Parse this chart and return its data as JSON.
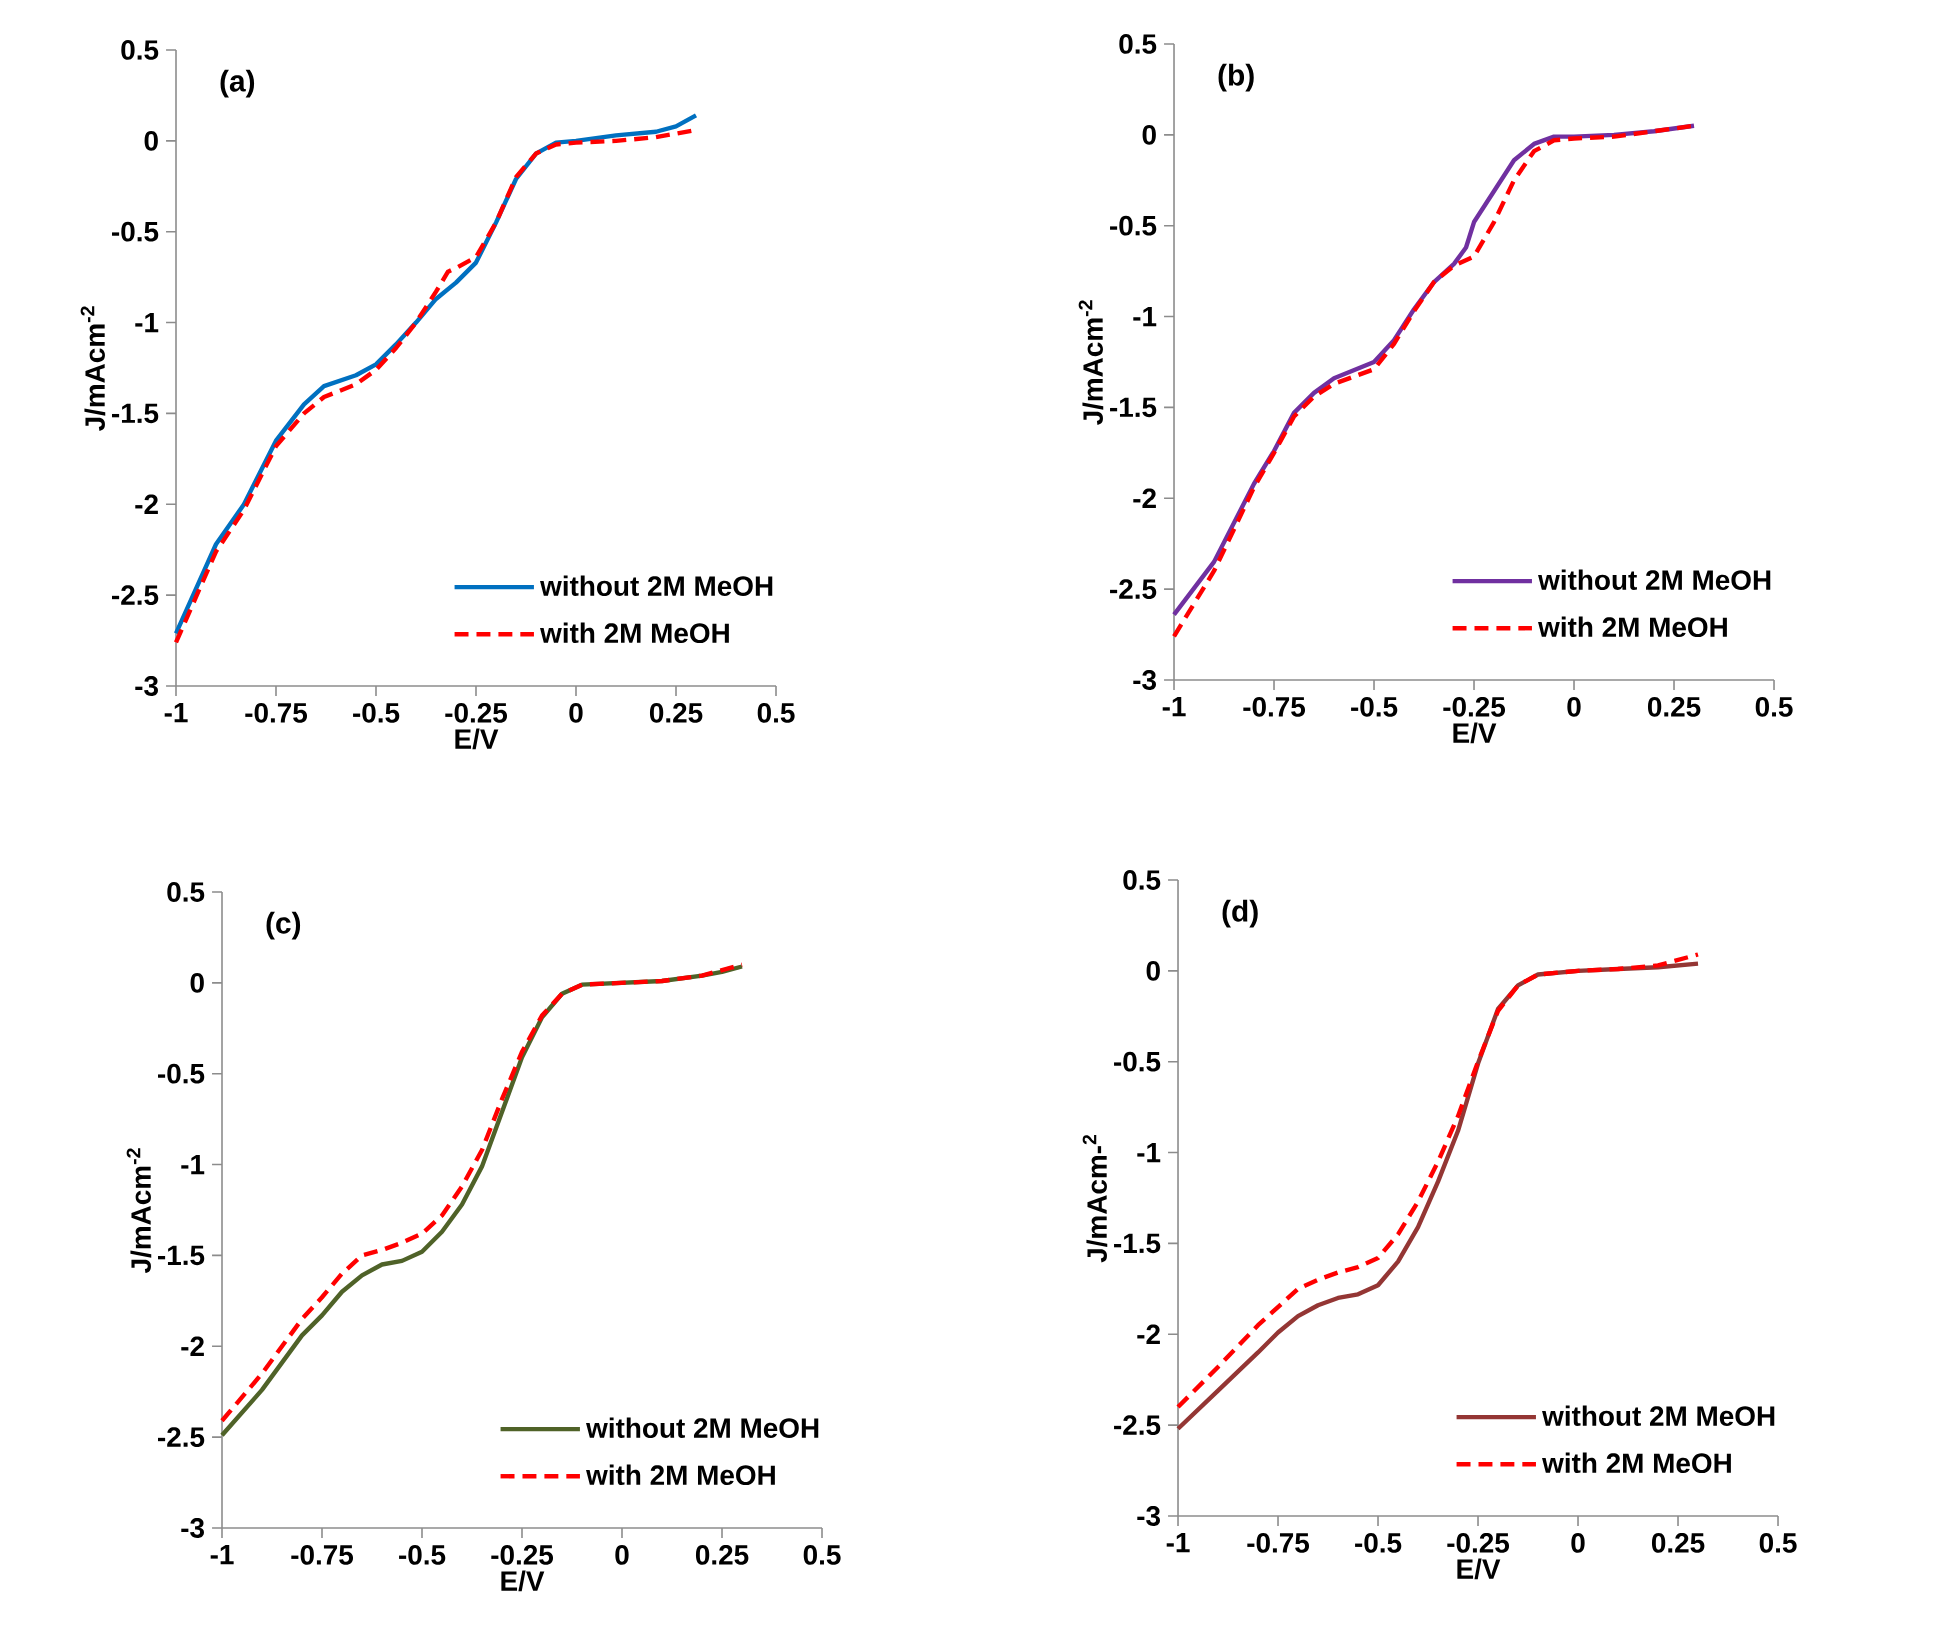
{
  "chart_data": [
    {
      "type": "line",
      "annotations": [
        "(a)"
      ],
      "xlabel": "E/V",
      "ylabel": "J/mAcm$^{-2}$",
      "xlim": [
        -1,
        0.5
      ],
      "ylim": [
        -3,
        0.5
      ],
      "xticks": [
        -1,
        -0.75,
        -0.5,
        -0.25,
        0,
        0.25,
        0.5
      ],
      "yticks": [
        -3,
        -2.5,
        -2,
        -1.5,
        -1,
        -0.5,
        0,
        0.5
      ],
      "legend": "bottom right",
      "series": [
        {
          "name": "without 2M MeOH",
          "color": "#0070c0",
          "line_style": "solid",
          "x": [
            -1,
            -0.9,
            -0.83,
            -0.75,
            -0.68,
            -0.63,
            -0.55,
            -0.5,
            -0.45,
            -0.4,
            -0.35,
            -0.3,
            -0.25,
            -0.2,
            -0.15,
            -0.1,
            -0.05,
            0,
            0.1,
            0.2,
            0.25,
            0.3
          ],
          "values": [
            -2.71,
            -2.22,
            -2.0,
            -1.65,
            -1.45,
            -1.35,
            -1.29,
            -1.23,
            -1.12,
            -1.0,
            -0.87,
            -0.78,
            -0.67,
            -0.45,
            -0.21,
            -0.07,
            -0.01,
            0.0,
            0.03,
            0.05,
            0.08,
            0.14
          ]
        },
        {
          "name": "with 2M MeOH",
          "color": "#ff0000",
          "line_style": "dashed",
          "x": [
            -1,
            -0.9,
            -0.83,
            -0.75,
            -0.68,
            -0.63,
            -0.55,
            -0.5,
            -0.45,
            -0.4,
            -0.35,
            -0.32,
            -0.3,
            -0.25,
            -0.2,
            -0.15,
            -0.1,
            -0.05,
            0,
            0.1,
            0.2,
            0.3
          ],
          "values": [
            -2.76,
            -2.26,
            -2.03,
            -1.68,
            -1.5,
            -1.41,
            -1.34,
            -1.26,
            -1.14,
            -1.0,
            -0.83,
            -0.72,
            -0.7,
            -0.64,
            -0.45,
            -0.2,
            -0.07,
            -0.02,
            -0.01,
            0.0,
            0.02,
            0.06
          ]
        }
      ]
    },
    {
      "type": "line",
      "annotations": [
        "(b)"
      ],
      "xlabel": "E/V",
      "ylabel": "J/mAcm$^{-2}$",
      "xlim": [
        -1,
        0.5
      ],
      "ylim": [
        -3,
        0.5
      ],
      "xticks": [
        -1,
        -0.75,
        -0.5,
        -0.25,
        0,
        0.25,
        0.5
      ],
      "yticks": [
        -3,
        -2.5,
        -2,
        -1.5,
        -1,
        -0.5,
        0,
        0.5
      ],
      "legend": "bottom right",
      "series": [
        {
          "name": "without 2M MeOH",
          "color": "#7030a0",
          "line_style": "solid",
          "x": [
            -1,
            -0.9,
            -0.8,
            -0.75,
            -0.7,
            -0.65,
            -0.6,
            -0.5,
            -0.45,
            -0.4,
            -0.35,
            -0.3,
            -0.27,
            -0.25,
            -0.2,
            -0.15,
            -0.1,
            -0.05,
            0,
            0.1,
            0.2,
            0.3
          ],
          "values": [
            -2.64,
            -2.35,
            -1.92,
            -1.74,
            -1.53,
            -1.42,
            -1.34,
            -1.25,
            -1.13,
            -0.96,
            -0.81,
            -0.71,
            -0.62,
            -0.48,
            -0.31,
            -0.14,
            -0.05,
            -0.01,
            -0.01,
            0.0,
            0.02,
            0.05
          ]
        },
        {
          "name": "with 2M MeOH",
          "color": "#ff0000",
          "line_style": "dashed",
          "x": [
            -1,
            -0.9,
            -0.8,
            -0.75,
            -0.7,
            -0.65,
            -0.6,
            -0.5,
            -0.45,
            -0.4,
            -0.35,
            -0.3,
            -0.25,
            -0.2,
            -0.15,
            -0.1,
            -0.05,
            0,
            0.1,
            0.2,
            0.3
          ],
          "values": [
            -2.76,
            -2.4,
            -1.94,
            -1.75,
            -1.55,
            -1.44,
            -1.37,
            -1.29,
            -1.15,
            -0.97,
            -0.81,
            -0.72,
            -0.67,
            -0.48,
            -0.25,
            -0.09,
            -0.03,
            -0.02,
            -0.01,
            0.02,
            0.05
          ]
        }
      ]
    },
    {
      "type": "line",
      "annotations": [
        "(c)"
      ],
      "xlabel": "E/V",
      "ylabel": "J/mAcm$^{-2}$",
      "xlim": [
        -1,
        0.5
      ],
      "ylim": [
        -3,
        0.5
      ],
      "xticks": [
        -1,
        -0.75,
        -0.5,
        -0.25,
        0,
        0.25,
        0.5
      ],
      "yticks": [
        -3,
        -2.5,
        -2,
        -1.5,
        -1,
        -0.5,
        0,
        0.5
      ],
      "legend": "bottom right",
      "series": [
        {
          "name": "without 2M MeOH",
          "color": "#4f6228",
          "line_style": "solid",
          "x": [
            -1,
            -0.9,
            -0.8,
            -0.75,
            -0.7,
            -0.65,
            -0.6,
            -0.55,
            -0.5,
            -0.45,
            -0.4,
            -0.35,
            -0.3,
            -0.25,
            -0.2,
            -0.15,
            -0.1,
            0,
            0.1,
            0.2,
            0.25,
            0.3
          ],
          "values": [
            -2.49,
            -2.24,
            -1.94,
            -1.83,
            -1.7,
            -1.61,
            -1.55,
            -1.53,
            -1.48,
            -1.37,
            -1.22,
            -1.01,
            -0.71,
            -0.41,
            -0.19,
            -0.06,
            -0.01,
            0.0,
            0.01,
            0.04,
            0.06,
            0.09
          ]
        },
        {
          "name": "with 2M MeOH",
          "color": "#ff0000",
          "line_style": "dashed",
          "x": [
            -1,
            -0.9,
            -0.8,
            -0.75,
            -0.7,
            -0.65,
            -0.6,
            -0.55,
            -0.5,
            -0.45,
            -0.4,
            -0.35,
            -0.3,
            -0.25,
            -0.2,
            -0.15,
            -0.1,
            0,
            0.1,
            0.2,
            0.3
          ],
          "values": [
            -2.41,
            -2.15,
            -1.85,
            -1.73,
            -1.6,
            -1.5,
            -1.47,
            -1.43,
            -1.38,
            -1.28,
            -1.12,
            -0.92,
            -0.64,
            -0.38,
            -0.18,
            -0.06,
            -0.01,
            0.0,
            0.01,
            0.04,
            0.1
          ]
        }
      ]
    },
    {
      "type": "line",
      "annotations": [
        "(d)"
      ],
      "xlabel": "E/V",
      "ylabel": "J/mAcm-$^{2}$",
      "xlim": [
        -1,
        0.5
      ],
      "ylim": [
        -3,
        0.5
      ],
      "xticks": [
        -1,
        -0.75,
        -0.5,
        -0.25,
        0,
        0.25,
        0.5
      ],
      "yticks": [
        -3,
        -2.5,
        -2,
        -1.5,
        -1,
        -0.5,
        0,
        0.5
      ],
      "legend": "bottom right",
      "series": [
        {
          "name": "without 2M MeOH",
          "color": "#943634",
          "line_style": "solid",
          "x": [
            -1,
            -0.9,
            -0.8,
            -0.75,
            -0.7,
            -0.65,
            -0.6,
            -0.55,
            -0.5,
            -0.45,
            -0.4,
            -0.35,
            -0.3,
            -0.25,
            -0.2,
            -0.15,
            -0.1,
            0,
            0.1,
            0.2,
            0.3
          ],
          "values": [
            -2.52,
            -2.31,
            -2.1,
            -1.99,
            -1.9,
            -1.84,
            -1.8,
            -1.78,
            -1.73,
            -1.6,
            -1.41,
            -1.16,
            -0.88,
            -0.51,
            -0.21,
            -0.08,
            -0.02,
            0.0,
            0.01,
            0.02,
            0.04
          ]
        },
        {
          "name": "with 2M MeOH",
          "color": "#ff0000",
          "line_style": "dashed",
          "x": [
            -1,
            -0.9,
            -0.8,
            -0.75,
            -0.7,
            -0.65,
            -0.6,
            -0.55,
            -0.5,
            -0.45,
            -0.4,
            -0.35,
            -0.3,
            -0.25,
            -0.2,
            -0.15,
            -0.1,
            0,
            0.1,
            0.2,
            0.3
          ],
          "values": [
            -2.4,
            -2.18,
            -1.95,
            -1.85,
            -1.75,
            -1.7,
            -1.66,
            -1.63,
            -1.58,
            -1.45,
            -1.27,
            -1.05,
            -0.8,
            -0.5,
            -0.22,
            -0.08,
            -0.02,
            0.0,
            0.01,
            0.03,
            0.09
          ]
        }
      ]
    }
  ]
}
